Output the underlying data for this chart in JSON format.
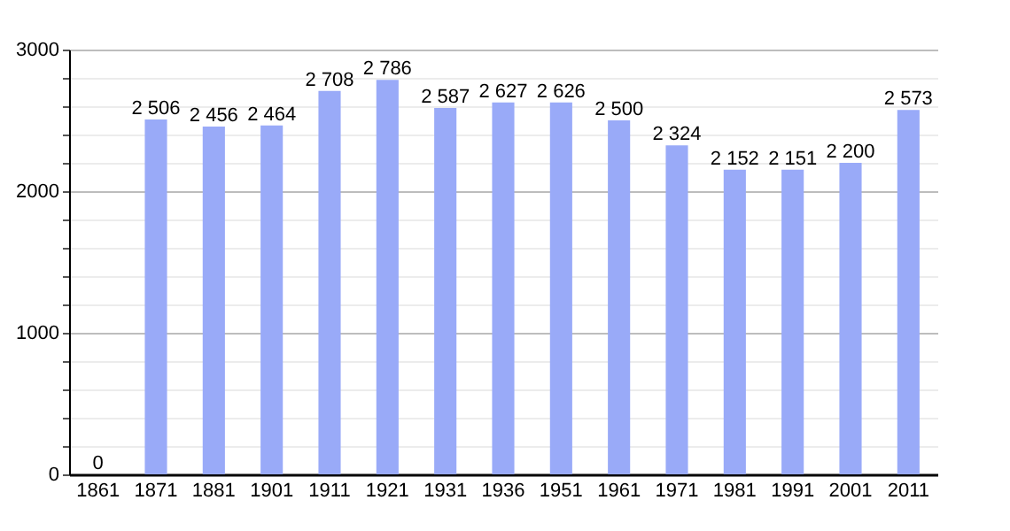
{
  "chart_data": {
    "type": "bar",
    "categories": [
      "1861",
      "1871",
      "1881",
      "1901",
      "1911",
      "1921",
      "1931",
      "1936",
      "1951",
      "1961",
      "1971",
      "1981",
      "1991",
      "2001",
      "2011"
    ],
    "values": [
      0,
      2506,
      2456,
      2464,
      2708,
      2786,
      2587,
      2627,
      2626,
      2500,
      2324,
      2152,
      2151,
      2200,
      2573
    ],
    "value_labels": [
      "0",
      "2 506",
      "2 456",
      "2 464",
      "2 708",
      "2 786",
      "2 587",
      "2 627",
      "2 626",
      "2 500",
      "2 324",
      "2 152",
      "2 151",
      "2 200",
      "2 573"
    ],
    "color": "#99aaf8",
    "ylim": [
      0,
      3000
    ],
    "yticks": [
      0,
      {
        "value": 200,
        "label": null
      },
      {
        "value": 400,
        "label": null
      },
      {
        "value": 600,
        "label": null
      },
      {
        "value": 800,
        "label": null
      },
      1000,
      {
        "value": 1200,
        "label": null
      },
      {
        "value": 1400,
        "label": null
      },
      {
        "value": 1600,
        "label": null
      },
      {
        "value": 1800,
        "label": null
      },
      2000,
      {
        "value": 2200,
        "label": null
      },
      {
        "value": 2400,
        "label": null
      },
      {
        "value": 2600,
        "label": null
      },
      {
        "value": 2800,
        "label": null
      },
      3000
    ],
    "grid": true
  }
}
